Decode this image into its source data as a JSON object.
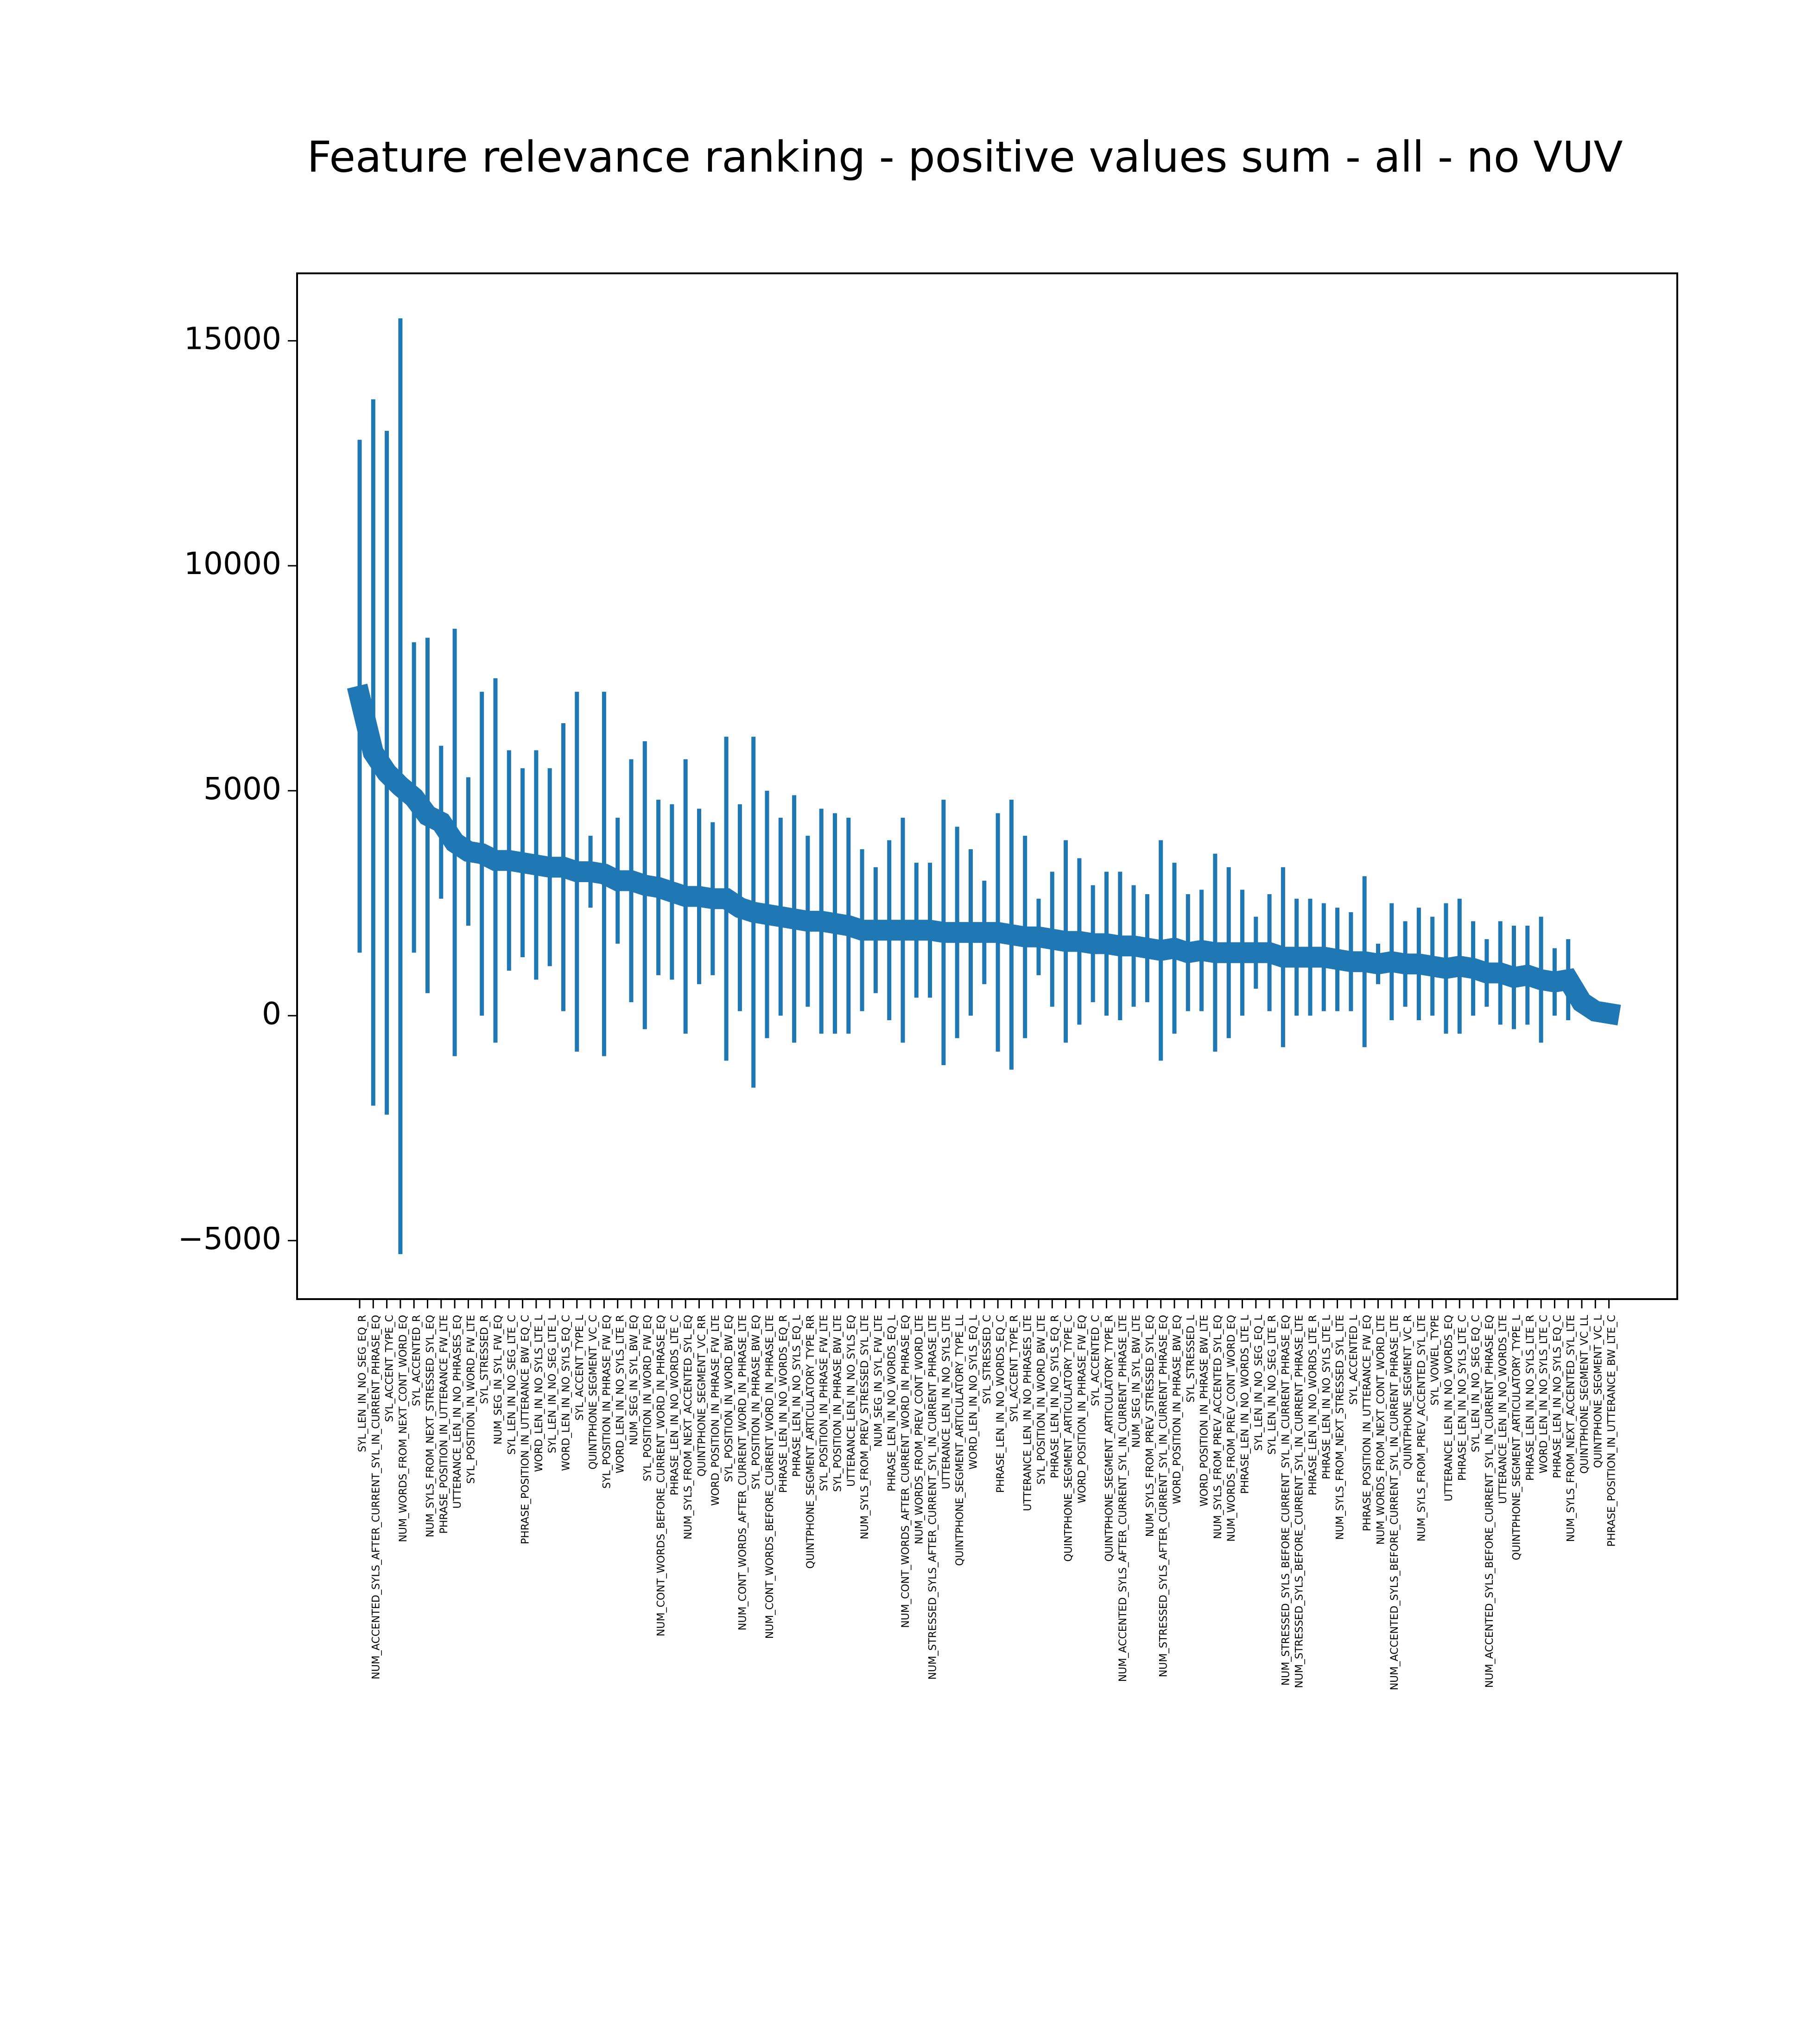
{
  "chart_data": {
    "type": "errorbar",
    "title": "Feature relevance ranking - positive values sum - all - no VUV",
    "color": "#1f77b4",
    "categories": [
      "SYL_LEN_IN_NO_SEG_EQ_R",
      "NUM_ACCENTED_SYLS_AFTER_CURRENT_SYL_IN_CURRENT_PHRASE_EQ",
      "SYL_ACCENT_TYPE_C",
      "NUM_WORDS_FROM_NEXT_CONT_WORD_EQ",
      "SYL_ACCENTED_R",
      "NUM_SYLS_FROM_NEXT_STRESSED_SYL_EQ",
      "PHRASE_POSITION_IN_UTTERANCE_FW_LTE",
      "UTTERANCE_LEN_IN_NO_PHRASES_EQ",
      "SYL_POSITION_IN_WORD_FW_LTE",
      "SYL_STRESSED_R",
      "NUM_SEG_IN_SYL_FW_EQ",
      "SYL_LEN_IN_NO_SEG_LTE_C",
      "PHRASE_POSITION_IN_UTTERANCE_BW_EQ_C",
      "WORD_LEN_IN_NO_SYLS_LTE_L",
      "SYL_LEN_IN_NO_SEG_LTE_L",
      "WORD_LEN_IN_NO_SYLS_EQ_C",
      "SYL_ACCENT_TYPE_L",
      "QUINTPHONE_SEGMENT_VC_C",
      "SYL_POSITION_IN_PHRASE_FW_EQ",
      "WORD_LEN_IN_NO_SYLS_LTE_R",
      "NUM_SEG_IN_SYL_BW_EQ",
      "SYL_POSITION_IN_WORD_FW_EQ",
      "NUM_CONT_WORDS_BEFORE_CURRENT_WORD_IN_PHRASE_EQ",
      "PHRASE_LEN_IN_NO_WORDS_LTE_C",
      "NUM_SYLS_FROM_NEXT_ACCENTED_SYL_EQ",
      "QUINTPHONE_SEGMENT_VC_RR",
      "WORD_POSITION_IN_PHRASE_FW_LTE",
      "SYL_POSITION_IN_WORD_BW_EQ",
      "NUM_CONT_WORDS_AFTER_CURRENT_WORD_IN_PHRASE_LTE",
      "SYL_POSITION_IN_PHRASE_BW_EQ",
      "NUM_CONT_WORDS_BEFORE_CURRENT_WORD_IN_PHRASE_LTE",
      "PHRASE_LEN_IN_NO_WORDS_EQ_R",
      "PHRASE_LEN_IN_NO_SYLS_EQ_L",
      "QUINTPHONE_SEGMENT_ARTICULATORY_TYPE_RR",
      "SYL_POSITION_IN_PHRASE_FW_LTE",
      "SYL_POSITION_IN_PHRASE_BW_LTE",
      "UTTERANCE_LEN_IN_NO_SYLS_EQ",
      "NUM_SYLS_FROM_PREV_STRESSED_SYL_LTE",
      "NUM_SEG_IN_SYL_FW_LTE",
      "PHRASE_LEN_IN_NO_WORDS_EQ_L",
      "NUM_CONT_WORDS_AFTER_CURRENT_WORD_IN_PHRASE_EQ",
      "NUM_WORDS_FROM_PREV_CONT_WORD_LTE",
      "NUM_STRESSED_SYLS_AFTER_CURRENT_SYL_IN_CURRENT_PHRASE_LTE",
      "UTTERANCE_LEN_IN_NO_SYLS_LTE",
      "QUINTPHONE_SEGMENT_ARTICULATORY_TYPE_LL",
      "WORD_LEN_IN_NO_SYLS_EQ_L",
      "SYL_STRESSED_C",
      "PHRASE_LEN_IN_NO_WORDS_EQ_C",
      "SYL_ACCENT_TYPE_R",
      "UTTERANCE_LEN_IN_NO_PHRASES_LTE",
      "SYL_POSITION_IN_WORD_BW_LTE",
      "PHRASE_LEN_IN_NO_SYLS_EQ_R",
      "QUINTPHONE_SEGMENT_ARTICULATORY_TYPE_C",
      "WORD_POSITION_IN_PHRASE_FW_EQ",
      "SYL_ACCENTED_C",
      "QUINTPHONE_SEGMENT_ARTICULATORY_TYPE_R",
      "NUM_ACCENTED_SYLS_AFTER_CURRENT_SYL_IN_CURRENT_PHRASE_LTE",
      "NUM_SEG_IN_SYL_BW_LTE",
      "NUM_SYLS_FROM_PREV_STRESSED_SYL_EQ",
      "NUM_STRESSED_SYLS_AFTER_CURRENT_SYL_IN_CURRENT_PHRASE_EQ",
      "WORD_POSITION_IN_PHRASE_BW_EQ",
      "SYL_STRESSED_L",
      "WORD_POSITION_IN_PHRASE_BW_LTE",
      "NUM_SYLS_FROM_PREV_ACCENTED_SYL_EQ",
      "NUM_WORDS_FROM_PREV_CONT_WORD_EQ",
      "PHRASE_LEN_IN_NO_WORDS_LTE_L",
      "SYL_LEN_IN_NO_SEG_EQ_L",
      "SYL_LEN_IN_NO_SEG_LTE_R",
      "NUM_STRESSED_SYLS_BEFORE_CURRENT_SYL_IN_CURRENT_PHRASE_EQ",
      "NUM_STRESSED_SYLS_BEFORE_CURRENT_SYL_IN_CURRENT_PHRASE_LTE",
      "PHRASE_LEN_IN_NO_WORDS_LTE_R",
      "PHRASE_LEN_IN_NO_SYLS_LTE_L",
      "NUM_SYLS_FROM_NEXT_STRESSED_SYL_LTE",
      "SYL_ACCENTED_L",
      "PHRASE_POSITION_IN_UTTERANCE_FW_EQ",
      "NUM_WORDS_FROM_NEXT_CONT_WORD_LTE",
      "NUM_ACCENTED_SYLS_BEFORE_CURRENT_SYL_IN_CURRENT_PHRASE_LTE",
      "QUINTPHONE_SEGMENT_VC_R",
      "NUM_SYLS_FROM_PREV_ACCENTED_SYL_LTE",
      "SYL_VOWEL_TYPE",
      "UTTERANCE_LEN_IN_NO_WORDS_EQ",
      "PHRASE_LEN_IN_NO_SYLS_LTE_C",
      "SYL_LEN_IN_NO_SEG_EQ_C",
      "NUM_ACCENTED_SYLS_BEFORE_CURRENT_SYL_IN_CURRENT_PHRASE_EQ",
      "UTTERANCE_LEN_IN_NO_WORDS_LTE",
      "QUINTPHONE_SEGMENT_ARTICULATORY_TYPE_L",
      "PHRASE_LEN_IN_NO_SYLS_LTE_R",
      "WORD_LEN_IN_NO_SYLS_LTE_C",
      "PHRASE_LEN_IN_NO_SYLS_EQ_C",
      "NUM_SYLS_FROM_NEXT_ACCENTED_SYL_LTE",
      "QUINTPHONE_SEGMENT_VC_LL",
      "QUINTPHONE_SEGMENT_VC_L",
      "PHRASE_POSITION_IN_UTTERANCE_BW_LTE_C"
    ],
    "values": [
      7100,
      5850,
      5400,
      5100,
      4850,
      4450,
      4300,
      3850,
      3650,
      3600,
      3450,
      3450,
      3400,
      3350,
      3300,
      3300,
      3200,
      3200,
      3150,
      3000,
      3000,
      2900,
      2850,
      2750,
      2650,
      2650,
      2600,
      2600,
      2400,
      2300,
      2250,
      2200,
      2150,
      2100,
      2100,
      2050,
      2000,
      1900,
      1900,
      1900,
      1900,
      1900,
      1900,
      1850,
      1850,
      1850,
      1850,
      1850,
      1800,
      1750,
      1750,
      1700,
      1650,
      1650,
      1600,
      1600,
      1550,
      1550,
      1500,
      1450,
      1500,
      1400,
      1450,
      1400,
      1400,
      1400,
      1400,
      1400,
      1300,
      1300,
      1300,
      1300,
      1250,
      1200,
      1200,
      1150,
      1200,
      1150,
      1150,
      1100,
      1050,
      1100,
      1050,
      950,
      950,
      850,
      900,
      800,
      750,
      800,
      300,
      100,
      50
    ],
    "errors": [
      5700,
      7850,
      7600,
      10400,
      3450,
      3950,
      1700,
      4750,
      1650,
      3600,
      4050,
      2450,
      2100,
      2550,
      2200,
      3200,
      4000,
      800,
      4050,
      1400,
      2700,
      3200,
      1950,
      1950,
      3050,
      1950,
      1700,
      3600,
      2300,
      3900,
      2750,
      2200,
      2750,
      1900,
      2500,
      2450,
      2400,
      1800,
      1400,
      2000,
      2500,
      1500,
      1500,
      2950,
      2350,
      1850,
      1150,
      2650,
      3000,
      2250,
      850,
      1500,
      2250,
      1850,
      1300,
      1600,
      1650,
      1350,
      1200,
      2450,
      1900,
      1300,
      1350,
      2200,
      1900,
      1400,
      800,
      1300,
      2000,
      1300,
      1300,
      1200,
      1150,
      1100,
      1900,
      450,
      1300,
      950,
      1250,
      1100,
      1450,
      1500,
      1050,
      750,
      1150,
      1150,
      1100,
      1400,
      750,
      900,
      200,
      150,
      150
    ],
    "ylim": [
      -6300,
      16500
    ],
    "yticks": [
      {
        "value": -5000,
        "label": "−5000"
      },
      0,
      5000,
      10000,
      15000
    ]
  }
}
